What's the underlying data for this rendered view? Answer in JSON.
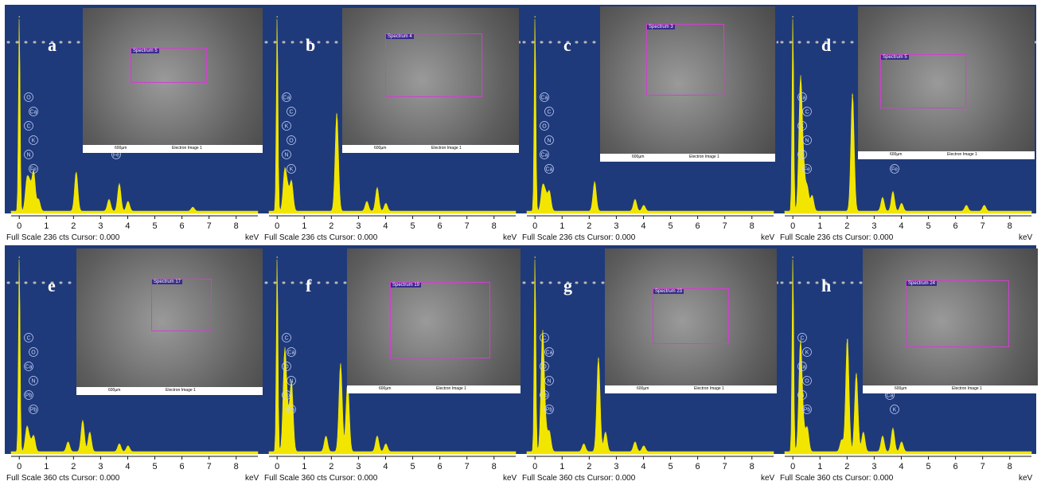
{
  "colors": {
    "background": "#1f3a7a",
    "peak": "#f2e600",
    "roi": "#d040d0",
    "element_label": "#c9d6ff"
  },
  "units": {
    "energy": "keV"
  },
  "sem_caption": {
    "scale": "600µm",
    "title": "Electron Image 1"
  },
  "chart_data": [
    {
      "type": "area",
      "panel": "a",
      "full_scale": "Full Scale 236 cts Cursor: 0.000",
      "xlim": [
        -0.3,
        8.8
      ],
      "x_ticks": [
        0,
        1,
        2,
        3,
        4,
        5,
        6,
        7,
        8
      ],
      "spectrum_label": "Spectrum 5",
      "element_labels": [
        "O",
        "Ca",
        "C",
        "K",
        "N",
        "Fe",
        "K",
        "Ca",
        "K",
        "Ca",
        "Fe"
      ],
      "peaks": [
        {
          "x": 0.0,
          "y": 1.0
        },
        {
          "x": 0.28,
          "y": 0.15
        },
        {
          "x": 0.39,
          "y": 0.12
        },
        {
          "x": 0.53,
          "y": 0.2
        },
        {
          "x": 0.71,
          "y": 0.06
        },
        {
          "x": 2.1,
          "y": 0.2
        },
        {
          "x": 3.31,
          "y": 0.06
        },
        {
          "x": 3.69,
          "y": 0.14
        },
        {
          "x": 4.01,
          "y": 0.05
        },
        {
          "x": 6.4,
          "y": 0.02
        }
      ]
    },
    {
      "type": "area",
      "panel": "b",
      "full_scale": "Full Scale 236 cts Cursor: 0.000",
      "xlim": [
        -0.3,
        8.8
      ],
      "x_ticks": [
        0,
        1,
        2,
        3,
        4,
        5,
        6,
        7,
        8
      ],
      "spectrum_label": "Spectrum 4",
      "element_labels": [
        "Ca",
        "C",
        "K",
        "O",
        "N",
        "K",
        "Ca",
        "K",
        "Ca"
      ],
      "peaks": [
        {
          "x": 0.0,
          "y": 1.0
        },
        {
          "x": 0.28,
          "y": 0.2
        },
        {
          "x": 0.39,
          "y": 0.1
        },
        {
          "x": 0.53,
          "y": 0.15
        },
        {
          "x": 2.2,
          "y": 0.5
        },
        {
          "x": 3.31,
          "y": 0.05
        },
        {
          "x": 3.69,
          "y": 0.12
        },
        {
          "x": 4.01,
          "y": 0.04
        }
      ]
    },
    {
      "type": "area",
      "panel": "c",
      "full_scale": "Full Scale 236 cts Cursor: 0.000",
      "xlim": [
        -0.3,
        8.8
      ],
      "x_ticks": [
        0,
        1,
        2,
        3,
        4,
        5,
        6,
        7,
        8
      ],
      "spectrum_label": "Spectrum 3",
      "element_labels": [
        "Ca",
        "C",
        "O",
        "N",
        "Ca",
        "Ca"
      ],
      "peaks": [
        {
          "x": 0.0,
          "y": 1.0
        },
        {
          "x": 0.28,
          "y": 0.12
        },
        {
          "x": 0.39,
          "y": 0.08
        },
        {
          "x": 0.53,
          "y": 0.1
        },
        {
          "x": 2.2,
          "y": 0.15
        },
        {
          "x": 3.69,
          "y": 0.06
        },
        {
          "x": 4.01,
          "y": 0.03
        }
      ]
    },
    {
      "type": "area",
      "panel": "d",
      "full_scale": "Full Scale 236 cts Cursor: 0.000",
      "xlim": [
        -0.3,
        8.8
      ],
      "x_ticks": [
        0,
        1,
        2,
        3,
        4,
        5,
        6,
        7,
        8
      ],
      "spectrum_label": "Spectrum 5",
      "element_labels": [
        "Ca",
        "C",
        "K",
        "N",
        "O",
        "Fe",
        "K",
        "Ca",
        "K",
        "Ca",
        "Fe",
        "Fe"
      ],
      "peaks": [
        {
          "x": 0.0,
          "y": 1.0
        },
        {
          "x": 0.28,
          "y": 0.65
        },
        {
          "x": 0.39,
          "y": 0.2
        },
        {
          "x": 0.53,
          "y": 0.12
        },
        {
          "x": 0.71,
          "y": 0.08
        },
        {
          "x": 2.2,
          "y": 0.6
        },
        {
          "x": 3.31,
          "y": 0.07
        },
        {
          "x": 3.69,
          "y": 0.1
        },
        {
          "x": 4.01,
          "y": 0.04
        },
        {
          "x": 6.4,
          "y": 0.03
        },
        {
          "x": 7.06,
          "y": 0.03
        }
      ]
    },
    {
      "type": "area",
      "panel": "e",
      "full_scale": "Full Scale 360 cts Cursor: 0.000",
      "xlim": [
        -0.3,
        8.8
      ],
      "x_ticks": [
        0,
        1,
        2,
        3,
        4,
        5,
        6,
        7,
        8
      ],
      "spectrum_label": "Spectrum 17",
      "element_labels": [
        "C",
        "O",
        "Ca",
        "N",
        "Pb",
        "Pb",
        "Pb",
        "Ca",
        "Ca"
      ],
      "peaks": [
        {
          "x": 0.0,
          "y": 1.0
        },
        {
          "x": 0.28,
          "y": 0.12
        },
        {
          "x": 0.39,
          "y": 0.05
        },
        {
          "x": 0.53,
          "y": 0.08
        },
        {
          "x": 1.8,
          "y": 0.05
        },
        {
          "x": 2.34,
          "y": 0.16
        },
        {
          "x": 2.6,
          "y": 0.1
        },
        {
          "x": 3.69,
          "y": 0.04
        },
        {
          "x": 4.01,
          "y": 0.03
        }
      ]
    },
    {
      "type": "area",
      "panel": "f",
      "full_scale": "Full Scale 360 cts Cursor: 0.000",
      "xlim": [
        -0.3,
        8.8
      ],
      "x_ticks": [
        0,
        1,
        2,
        3,
        4,
        5,
        6,
        7,
        8
      ],
      "spectrum_label": "Spectrum 19",
      "element_labels": [
        "C",
        "Ca",
        "O",
        "N",
        "Pb",
        "Pb",
        "Pb",
        "Ca",
        "Ca"
      ],
      "peaks": [
        {
          "x": 0.0,
          "y": 1.0
        },
        {
          "x": 0.28,
          "y": 0.5
        },
        {
          "x": 0.39,
          "y": 0.15
        },
        {
          "x": 0.53,
          "y": 0.35
        },
        {
          "x": 1.8,
          "y": 0.08
        },
        {
          "x": 2.34,
          "y": 0.45
        },
        {
          "x": 2.6,
          "y": 0.35
        },
        {
          "x": 3.69,
          "y": 0.08
        },
        {
          "x": 4.01,
          "y": 0.04
        }
      ]
    },
    {
      "type": "area",
      "panel": "g",
      "full_scale": "Full Scale 360 cts Cursor: 0.000",
      "xlim": [
        -0.3,
        8.8
      ],
      "x_ticks": [
        0,
        1,
        2,
        3,
        4,
        5,
        6,
        7,
        8
      ],
      "spectrum_label": "Spectrum 23",
      "element_labels": [
        "C",
        "Ca",
        "O",
        "N",
        "Pb",
        "Pb",
        "Pb",
        "Ca",
        "Ca"
      ],
      "peaks": [
        {
          "x": 0.0,
          "y": 1.0
        },
        {
          "x": 0.28,
          "y": 0.6
        },
        {
          "x": 0.39,
          "y": 0.1
        },
        {
          "x": 0.53,
          "y": 0.1
        },
        {
          "x": 1.8,
          "y": 0.04
        },
        {
          "x": 2.34,
          "y": 0.48
        },
        {
          "x": 2.6,
          "y": 0.1
        },
        {
          "x": 3.69,
          "y": 0.05
        },
        {
          "x": 4.01,
          "y": 0.03
        }
      ]
    },
    {
      "type": "area",
      "panel": "h",
      "full_scale": "Full Scale 360 cts Cursor: 0.000",
      "xlim": [
        -0.3,
        8.8
      ],
      "x_ticks": [
        0,
        1,
        2,
        3,
        4,
        5,
        6,
        7,
        8
      ],
      "spectrum_label": "Spectrum 24",
      "element_labels": [
        "C",
        "K",
        "Ca",
        "O",
        "N",
        "Pb",
        "P",
        "Pb",
        "Pb",
        "K",
        "Ca",
        "K",
        "Ca"
      ],
      "peaks": [
        {
          "x": 0.0,
          "y": 1.0
        },
        {
          "x": 0.28,
          "y": 0.55
        },
        {
          "x": 0.39,
          "y": 0.1
        },
        {
          "x": 0.53,
          "y": 0.12
        },
        {
          "x": 1.8,
          "y": 0.06
        },
        {
          "x": 2.01,
          "y": 0.58
        },
        {
          "x": 2.34,
          "y": 0.4
        },
        {
          "x": 2.6,
          "y": 0.1
        },
        {
          "x": 3.31,
          "y": 0.08
        },
        {
          "x": 3.69,
          "y": 0.12
        },
        {
          "x": 4.01,
          "y": 0.05
        }
      ]
    }
  ]
}
